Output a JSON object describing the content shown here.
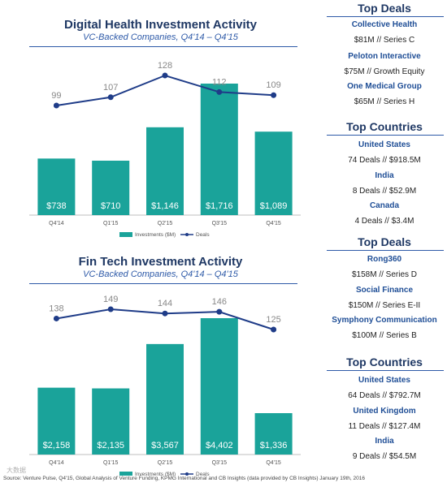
{
  "chart_data": [
    {
      "type": "bar",
      "title": "Digital Health Investment Activity",
      "subtitle": "VC-Backed Companies, Q4'14 – Q4'15",
      "categories": [
        "Q4'14",
        "Q1'15",
        "Q2'15",
        "Q3'15",
        "Q4'15"
      ],
      "series": [
        {
          "name": "Investments ($M)",
          "type": "bar",
          "values": [
            738,
            710,
            1146,
            1716,
            1089
          ],
          "labels": [
            "$738",
            "$710",
            "$1,146",
            "$1,716",
            "$1,089"
          ]
        },
        {
          "name": "Deals",
          "type": "line",
          "values": [
            99,
            107,
            128,
            112,
            109
          ]
        }
      ],
      "legend": "bottom",
      "grid": false,
      "colors": {
        "bar": "#1aa39a",
        "line": "#1f3c88"
      }
    },
    {
      "type": "bar",
      "title": "Fin Tech Investment Activity",
      "subtitle": "VC-Backed Companies, Q4'14 – Q4'15",
      "categories": [
        "Q4'14",
        "Q1'15",
        "Q2'15",
        "Q3'15",
        "Q4'15"
      ],
      "series": [
        {
          "name": "Investments ($M)",
          "type": "bar",
          "values": [
            2158,
            2135,
            3567,
            4402,
            1336
          ],
          "labels": [
            "$2,158",
            "$2,135",
            "$3,567",
            "$4,402",
            "$1,336"
          ]
        },
        {
          "name": "Deals",
          "type": "line",
          "values": [
            138,
            149,
            144,
            146,
            125
          ]
        }
      ],
      "legend": "bottom",
      "grid": false,
      "colors": {
        "bar": "#1aa39a",
        "line": "#1f3c88"
      }
    }
  ],
  "sidebar": {
    "health_deals": {
      "heading": "Top Deals",
      "items": [
        {
          "name": "Collective Health",
          "detail": "$81M // Series C"
        },
        {
          "name": "Peloton Interactive",
          "detail": "$75M // Growth Equity"
        },
        {
          "name": "One Medical Group",
          "detail": "$65M // Series H"
        }
      ]
    },
    "health_countries": {
      "heading": "Top Countries",
      "items": [
        {
          "name": "United States",
          "detail": "74 Deals // $918.5M"
        },
        {
          "name": "India",
          "detail": "8 Deals // $52.9M"
        },
        {
          "name": "Canada",
          "detail": "4 Deals // $3.4M"
        }
      ]
    },
    "fintech_deals": {
      "heading": "Top Deals",
      "items": [
        {
          "name": "Rong360",
          "detail": "$158M // Series D"
        },
        {
          "name": "Social Finance",
          "detail": "$150M // Series E-II"
        },
        {
          "name": "Symphony Communication",
          "detail": "$100M // Series B"
        }
      ]
    },
    "fintech_countries": {
      "heading": "Top Countries",
      "items": [
        {
          "name": "United States",
          "detail": "64 Deals // $792.7M"
        },
        {
          "name": "United Kingdom",
          "detail": "11 Deals // $127.4M"
        },
        {
          "name": "India",
          "detail": "9 Deals // $54.5M"
        }
      ]
    }
  },
  "source": "Source: Venture Pulse, Q4'15, Global Analysis of Venture Funding, KPMG International and CB Insights (data provided by CB Insights) January 19th, 2016",
  "watermark": "大数据"
}
